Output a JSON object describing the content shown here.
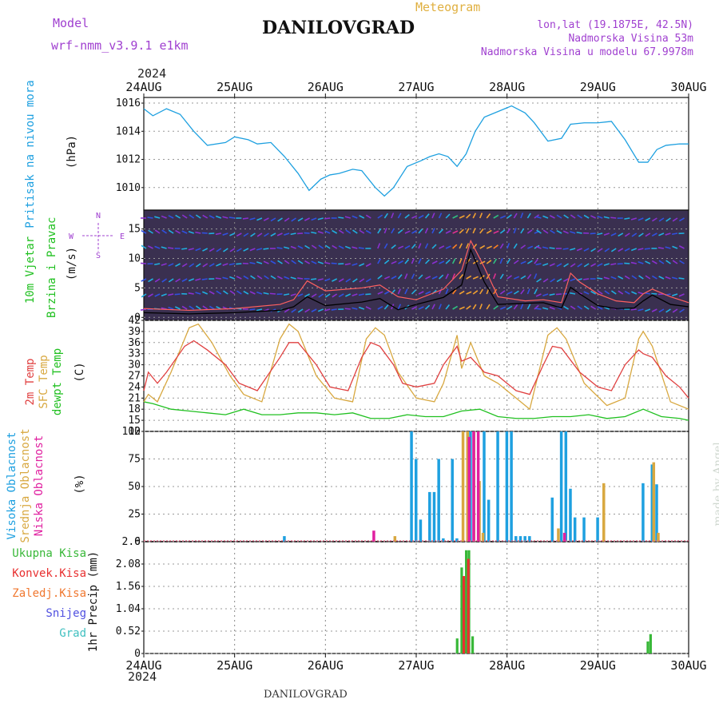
{
  "header": {
    "model_label": "Model",
    "model_name": "wrf-nmm_v3.9.1  e1km",
    "station": "DANILOVGRAD",
    "meteogram": "Meteogram",
    "lonlat": "lon,lat (19.1875E, 42.5N)",
    "altitude": "Nadmorska Visina 53m",
    "model_altitude": "Nadmorska Visina u modelu 67.9978m"
  },
  "footer": {
    "station": "DANILOVGRAD",
    "credit": "made by Angel"
  },
  "time_axis": {
    "year": "2024",
    "labels": [
      "24AUG",
      "25AUG",
      "26AUG",
      "27AUG",
      "28AUG",
      "29AUG",
      "30AUG"
    ]
  },
  "panels": {
    "pressure": {
      "label": "Pritisak na nivou mora",
      "unit": "(hPa)",
      "ticks": [
        "1016",
        "1014",
        "1012",
        "1010"
      ]
    },
    "wind": {
      "label1": "10m Vjetar",
      "label2": "Brzina i Pravac",
      "unit": "(m/s)",
      "ticks": [
        "15",
        "10",
        "5",
        "0"
      ],
      "compass": {
        "n": "N",
        "s": "S",
        "e": "E",
        "w": "W"
      }
    },
    "temp": {
      "label1": "2m Temp",
      "label2": "SFC Temp",
      "label3": "dewpt Temp",
      "unit": "(C)",
      "ticks": [
        "42",
        "39",
        "36",
        "33",
        "30",
        "27",
        "24",
        "21",
        "18",
        "15",
        "12"
      ]
    },
    "cloud": {
      "label1": "Visoka Oblacnost",
      "label2": "Srednja Oblacnost",
      "label3": "Niska Oblacnost",
      "unit": "(%)",
      "ticks": [
        "100",
        "75",
        "50",
        "25",
        "0"
      ]
    },
    "precip": {
      "ylabel": "1hr Precip (mm)",
      "ticks": [
        "2.6",
        "2.08",
        "1.56",
        "1.04",
        "0.52",
        "0"
      ],
      "legend": [
        "Ukupna Kisa",
        "Konvek.Kisa",
        "Zaledj.Kisa",
        "Snijeg",
        "Grad"
      ]
    }
  },
  "colors": {
    "pressure": "#1ea0e0",
    "t2m": "#e04040",
    "sfc": "#d8a840",
    "dew": "#20c020",
    "high": "#1ea0e0",
    "mid": "#d8a840",
    "low": "#e020a0",
    "total": "#38b838",
    "conv": "#e83030",
    "frz": "#f07830",
    "snow": "#5050e0",
    "hail": "#40c0c0"
  },
  "chart_data": [
    {
      "type": "line",
      "title": "Pritisak na nivou mora",
      "ylabel": "(hPa)",
      "ylim": [
        1008.4,
        1016.4
      ],
      "x_unit": "days since 24AUG 00UTC",
      "series": [
        {
          "name": "pressure",
          "x": [
            0,
            0.1,
            0.25,
            0.4,
            0.55,
            0.7,
            0.9,
            1.0,
            1.15,
            1.25,
            1.4,
            1.55,
            1.7,
            1.82,
            1.95,
            2.05,
            2.15,
            2.3,
            2.4,
            2.55,
            2.65,
            2.75,
            2.9,
            3.05,
            3.15,
            3.25,
            3.35,
            3.45,
            3.55,
            3.65,
            3.75,
            3.9,
            4.05,
            4.2,
            4.3,
            4.45,
            4.6,
            4.7,
            4.85,
            5.0,
            5.15,
            5.3,
            5.45,
            5.55,
            5.65,
            5.75,
            5.9,
            6.0
          ],
          "y": [
            1015.6,
            1015.1,
            1015.6,
            1015.2,
            1014.0,
            1013.0,
            1013.2,
            1013.6,
            1013.4,
            1013.1,
            1013.2,
            1012.2,
            1011.0,
            1009.8,
            1010.6,
            1010.9,
            1011.0,
            1011.3,
            1011.2,
            1010.0,
            1009.4,
            1010.0,
            1011.5,
            1011.9,
            1012.2,
            1012.4,
            1012.2,
            1011.5,
            1012.4,
            1014.0,
            1015.0,
            1015.4,
            1015.8,
            1015.3,
            1014.6,
            1013.3,
            1013.5,
            1014.5,
            1014.6,
            1014.6,
            1014.7,
            1013.4,
            1011.8,
            1011.8,
            1012.7,
            1013.0,
            1013.1,
            1013.1
          ]
        }
      ]
    },
    {
      "type": "line",
      "title": "10m Vjetar Brzina i Pravac",
      "ylabel": "(m/s)",
      "ylim": [
        -0.5,
        18.2
      ],
      "series": [
        {
          "name": "brzina",
          "x": [
            0,
            0.5,
            1.0,
            1.5,
            1.65,
            1.8,
            2.0,
            2.4,
            2.6,
            2.8,
            3.0,
            3.3,
            3.5,
            3.6,
            3.75,
            3.9,
            4.2,
            4.4,
            4.6,
            4.7,
            4.8,
            5.0,
            5.2,
            5.4,
            5.5,
            5.6,
            5.8,
            6.0
          ],
          "y": [
            0.8,
            0.6,
            0.8,
            1.2,
            1.8,
            3.5,
            2.0,
            2.6,
            3.2,
            1.3,
            2.2,
            3.4,
            5.5,
            11.5,
            6.0,
            2.2,
            2.4,
            2.5,
            1.6,
            5.1,
            4.0,
            2.0,
            1.5,
            1.6,
            2.8,
            3.8,
            2.2,
            1.8
          ]
        },
        {
          "name": "udari",
          "x": [
            0,
            0.5,
            1.0,
            1.5,
            1.65,
            1.8,
            2.0,
            2.4,
            2.6,
            2.8,
            3.0,
            3.3,
            3.5,
            3.6,
            3.75,
            3.9,
            4.2,
            4.4,
            4.6,
            4.7,
            4.8,
            5.0,
            5.2,
            5.4,
            5.5,
            5.6,
            5.8,
            6.0
          ],
          "y": [
            1.5,
            1.2,
            1.5,
            2.2,
            3.0,
            6.2,
            4.5,
            5.0,
            5.5,
            3.5,
            3.0,
            4.8,
            8.0,
            13.0,
            8.5,
            3.5,
            2.8,
            3.0,
            2.5,
            7.5,
            6.0,
            4.0,
            2.8,
            2.5,
            4.0,
            4.8,
            3.5,
            2.5
          ]
        }
      ]
    },
    {
      "type": "line",
      "title": "Temperature",
      "ylabel": "(C)",
      "ylim": [
        12,
        42
      ],
      "series": [
        {
          "name": "2m Temp",
          "x": [
            0,
            0.05,
            0.15,
            0.25,
            0.45,
            0.55,
            0.7,
            0.9,
            1.05,
            1.25,
            1.5,
            1.6,
            1.7,
            1.9,
            2.05,
            2.25,
            2.4,
            2.5,
            2.6,
            2.75,
            2.85,
            3.0,
            3.2,
            3.3,
            3.45,
            3.5,
            3.6,
            3.75,
            3.9,
            4.1,
            4.25,
            4.4,
            4.5,
            4.6,
            4.8,
            5.0,
            5.15,
            5.3,
            5.45,
            5.5,
            5.6,
            5.75,
            5.9,
            6.0
          ],
          "y": [
            23,
            28,
            25,
            28,
            35,
            36.5,
            34,
            30,
            25,
            23,
            32,
            36,
            36,
            30,
            24,
            23,
            32,
            36,
            35,
            30,
            25,
            24,
            25,
            30,
            35,
            31,
            32,
            28,
            27,
            23,
            22,
            30,
            35,
            34.5,
            28,
            24,
            23,
            30,
            34,
            33,
            32,
            27,
            24,
            21
          ]
        },
        {
          "name": "SFC Temp",
          "x": [
            0,
            0.05,
            0.15,
            0.3,
            0.5,
            0.6,
            0.75,
            0.95,
            1.1,
            1.3,
            1.5,
            1.6,
            1.7,
            1.9,
            2.1,
            2.3,
            2.45,
            2.55,
            2.65,
            2.8,
            3.0,
            3.2,
            3.3,
            3.45,
            3.5,
            3.6,
            3.75,
            3.9,
            4.1,
            4.25,
            4.45,
            4.55,
            4.65,
            4.85,
            5.1,
            5.3,
            5.45,
            5.5,
            5.6,
            5.8,
            6.0
          ],
          "y": [
            20,
            22,
            20,
            28,
            40,
            41,
            36,
            27,
            22,
            20,
            37,
            41,
            39,
            27,
            21,
            20,
            37,
            40,
            38,
            28,
            21,
            20,
            25,
            38,
            29,
            36,
            27,
            25,
            21,
            18,
            38,
            40,
            37,
            25,
            19,
            21,
            37,
            39,
            35,
            20,
            18
          ]
        },
        {
          "name": "dewpt Temp",
          "x": [
            0,
            0.1,
            0.3,
            0.5,
            0.7,
            0.9,
            1.1,
            1.3,
            1.5,
            1.7,
            1.9,
            2.1,
            2.3,
            2.5,
            2.7,
            2.9,
            3.1,
            3.3,
            3.5,
            3.7,
            3.9,
            4.1,
            4.3,
            4.5,
            4.7,
            4.9,
            5.1,
            5.3,
            5.5,
            5.7,
            5.9,
            6.0
          ],
          "y": [
            20,
            19.5,
            18,
            17.5,
            17,
            16.5,
            18,
            16.5,
            16.5,
            17,
            17,
            16.5,
            17,
            15.5,
            15.5,
            16.5,
            16,
            16,
            17.5,
            18,
            16,
            15.5,
            15.5,
            16,
            16,
            16.5,
            15.5,
            16,
            18,
            16,
            15.5,
            15
          ]
        }
      ]
    },
    {
      "type": "bar",
      "title": "Oblacnost",
      "ylabel": "(%)",
      "ylim": [
        0,
        100
      ],
      "series": [
        {
          "name": "Visoka Oblacnost",
          "x": [
            1.55,
            2.95,
            3.0,
            3.05,
            3.15,
            3.2,
            3.25,
            3.3,
            3.4,
            3.45,
            3.6,
            3.75,
            3.8,
            3.9,
            4.0,
            4.05,
            4.1,
            4.15,
            4.2,
            4.25,
            4.5,
            4.6,
            4.65,
            4.7,
            4.75,
            4.85,
            5.0,
            5.5,
            5.6,
            5.65
          ],
          "y": [
            5,
            100,
            75,
            20,
            45,
            45,
            75,
            3,
            75,
            3,
            100,
            100,
            38,
            100,
            100,
            100,
            5,
            5,
            5,
            5,
            40,
            100,
            100,
            48,
            22,
            22,
            22,
            53,
            70,
            52
          ]
        },
        {
          "name": "Srednja Oblacnost",
          "x": [
            2.75,
            3.5,
            3.55,
            3.62,
            3.68,
            3.72,
            4.55,
            5.05,
            5.6,
            5.65
          ],
          "y": [
            5,
            100,
            100,
            100,
            55,
            8,
            12,
            53,
            72,
            8
          ]
        },
        {
          "name": "Niska Oblacnost",
          "x": [
            2.5,
            3.55,
            3.6,
            3.65,
            4.6
          ],
          "y": [
            10,
            95,
            100,
            100,
            8
          ]
        }
      ]
    },
    {
      "type": "bar",
      "title": "1hr Precip",
      "ylabel": "1hr Precip (mm)",
      "ylim": [
        0,
        2.6
      ],
      "series": [
        {
          "name": "Ukupna Kisa",
          "x": [
            3.45,
            3.5,
            3.55,
            3.58,
            3.62,
            5.55,
            5.58
          ],
          "y": [
            0.35,
            2.0,
            2.4,
            2.4,
            0.4,
            0.28,
            0.45
          ]
        },
        {
          "name": "Konvek.Kisa",
          "x": [
            3.51,
            3.56
          ],
          "y": [
            1.8,
            2.2
          ]
        }
      ]
    }
  ]
}
